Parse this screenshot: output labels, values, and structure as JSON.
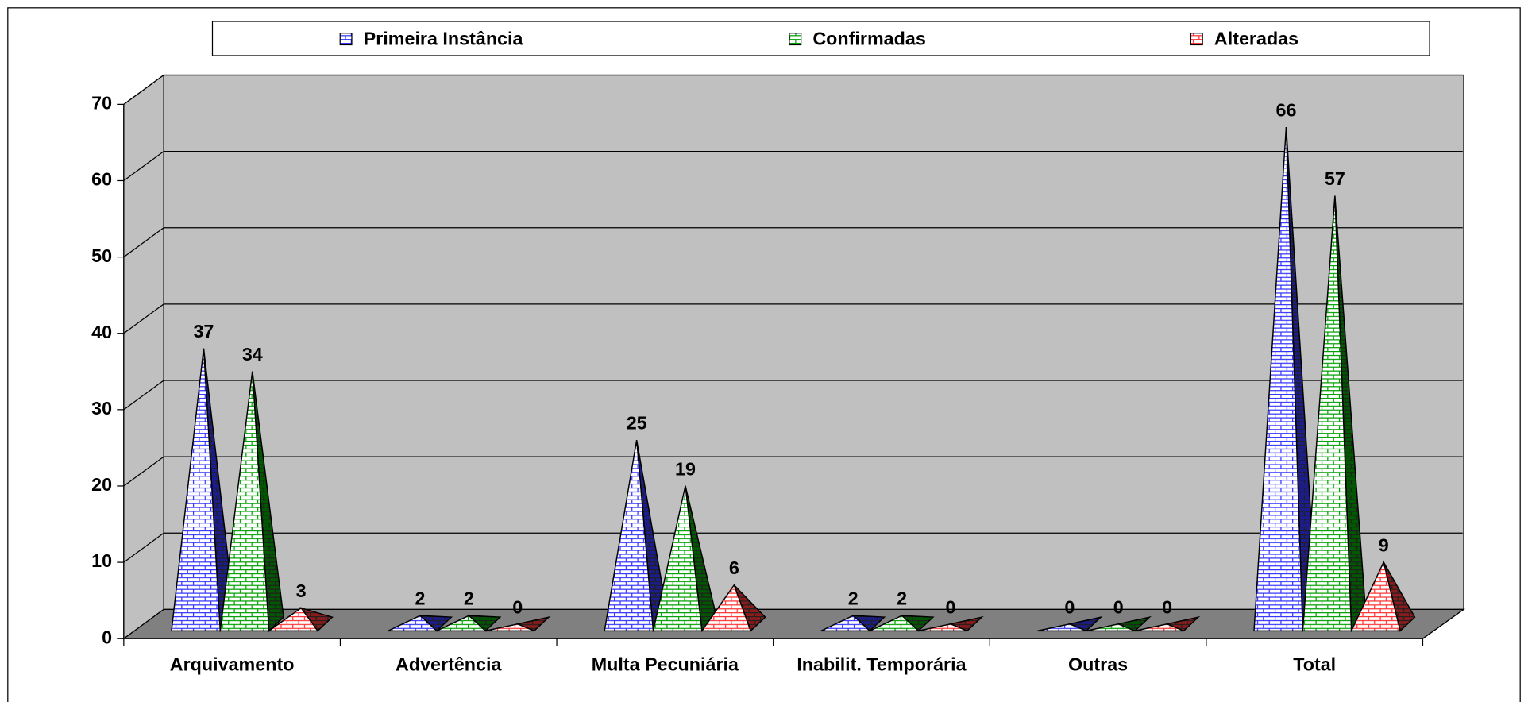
{
  "chart_data": {
    "type": "pyramid3d",
    "categories": [
      "Arquivamento",
      "Advertência",
      "Multa Pecuniária",
      "Inabilit. Temporária",
      "Outras",
      "Total"
    ],
    "series": [
      {
        "name": "Primeira Instância",
        "color": "#3333ff",
        "values": [
          37,
          2,
          25,
          2,
          0,
          66
        ]
      },
      {
        "name": "Confirmadas",
        "color": "#00a000",
        "values": [
          34,
          2,
          19,
          2,
          0,
          57
        ]
      },
      {
        "name": "Alteradas",
        "color": "#ff3333",
        "values": [
          3,
          0,
          6,
          0,
          0,
          9
        ]
      }
    ],
    "ylim": [
      0,
      70
    ],
    "yticks": [
      0,
      10,
      20,
      30,
      40,
      50,
      60,
      70
    ],
    "grid": true,
    "legend": "top"
  }
}
